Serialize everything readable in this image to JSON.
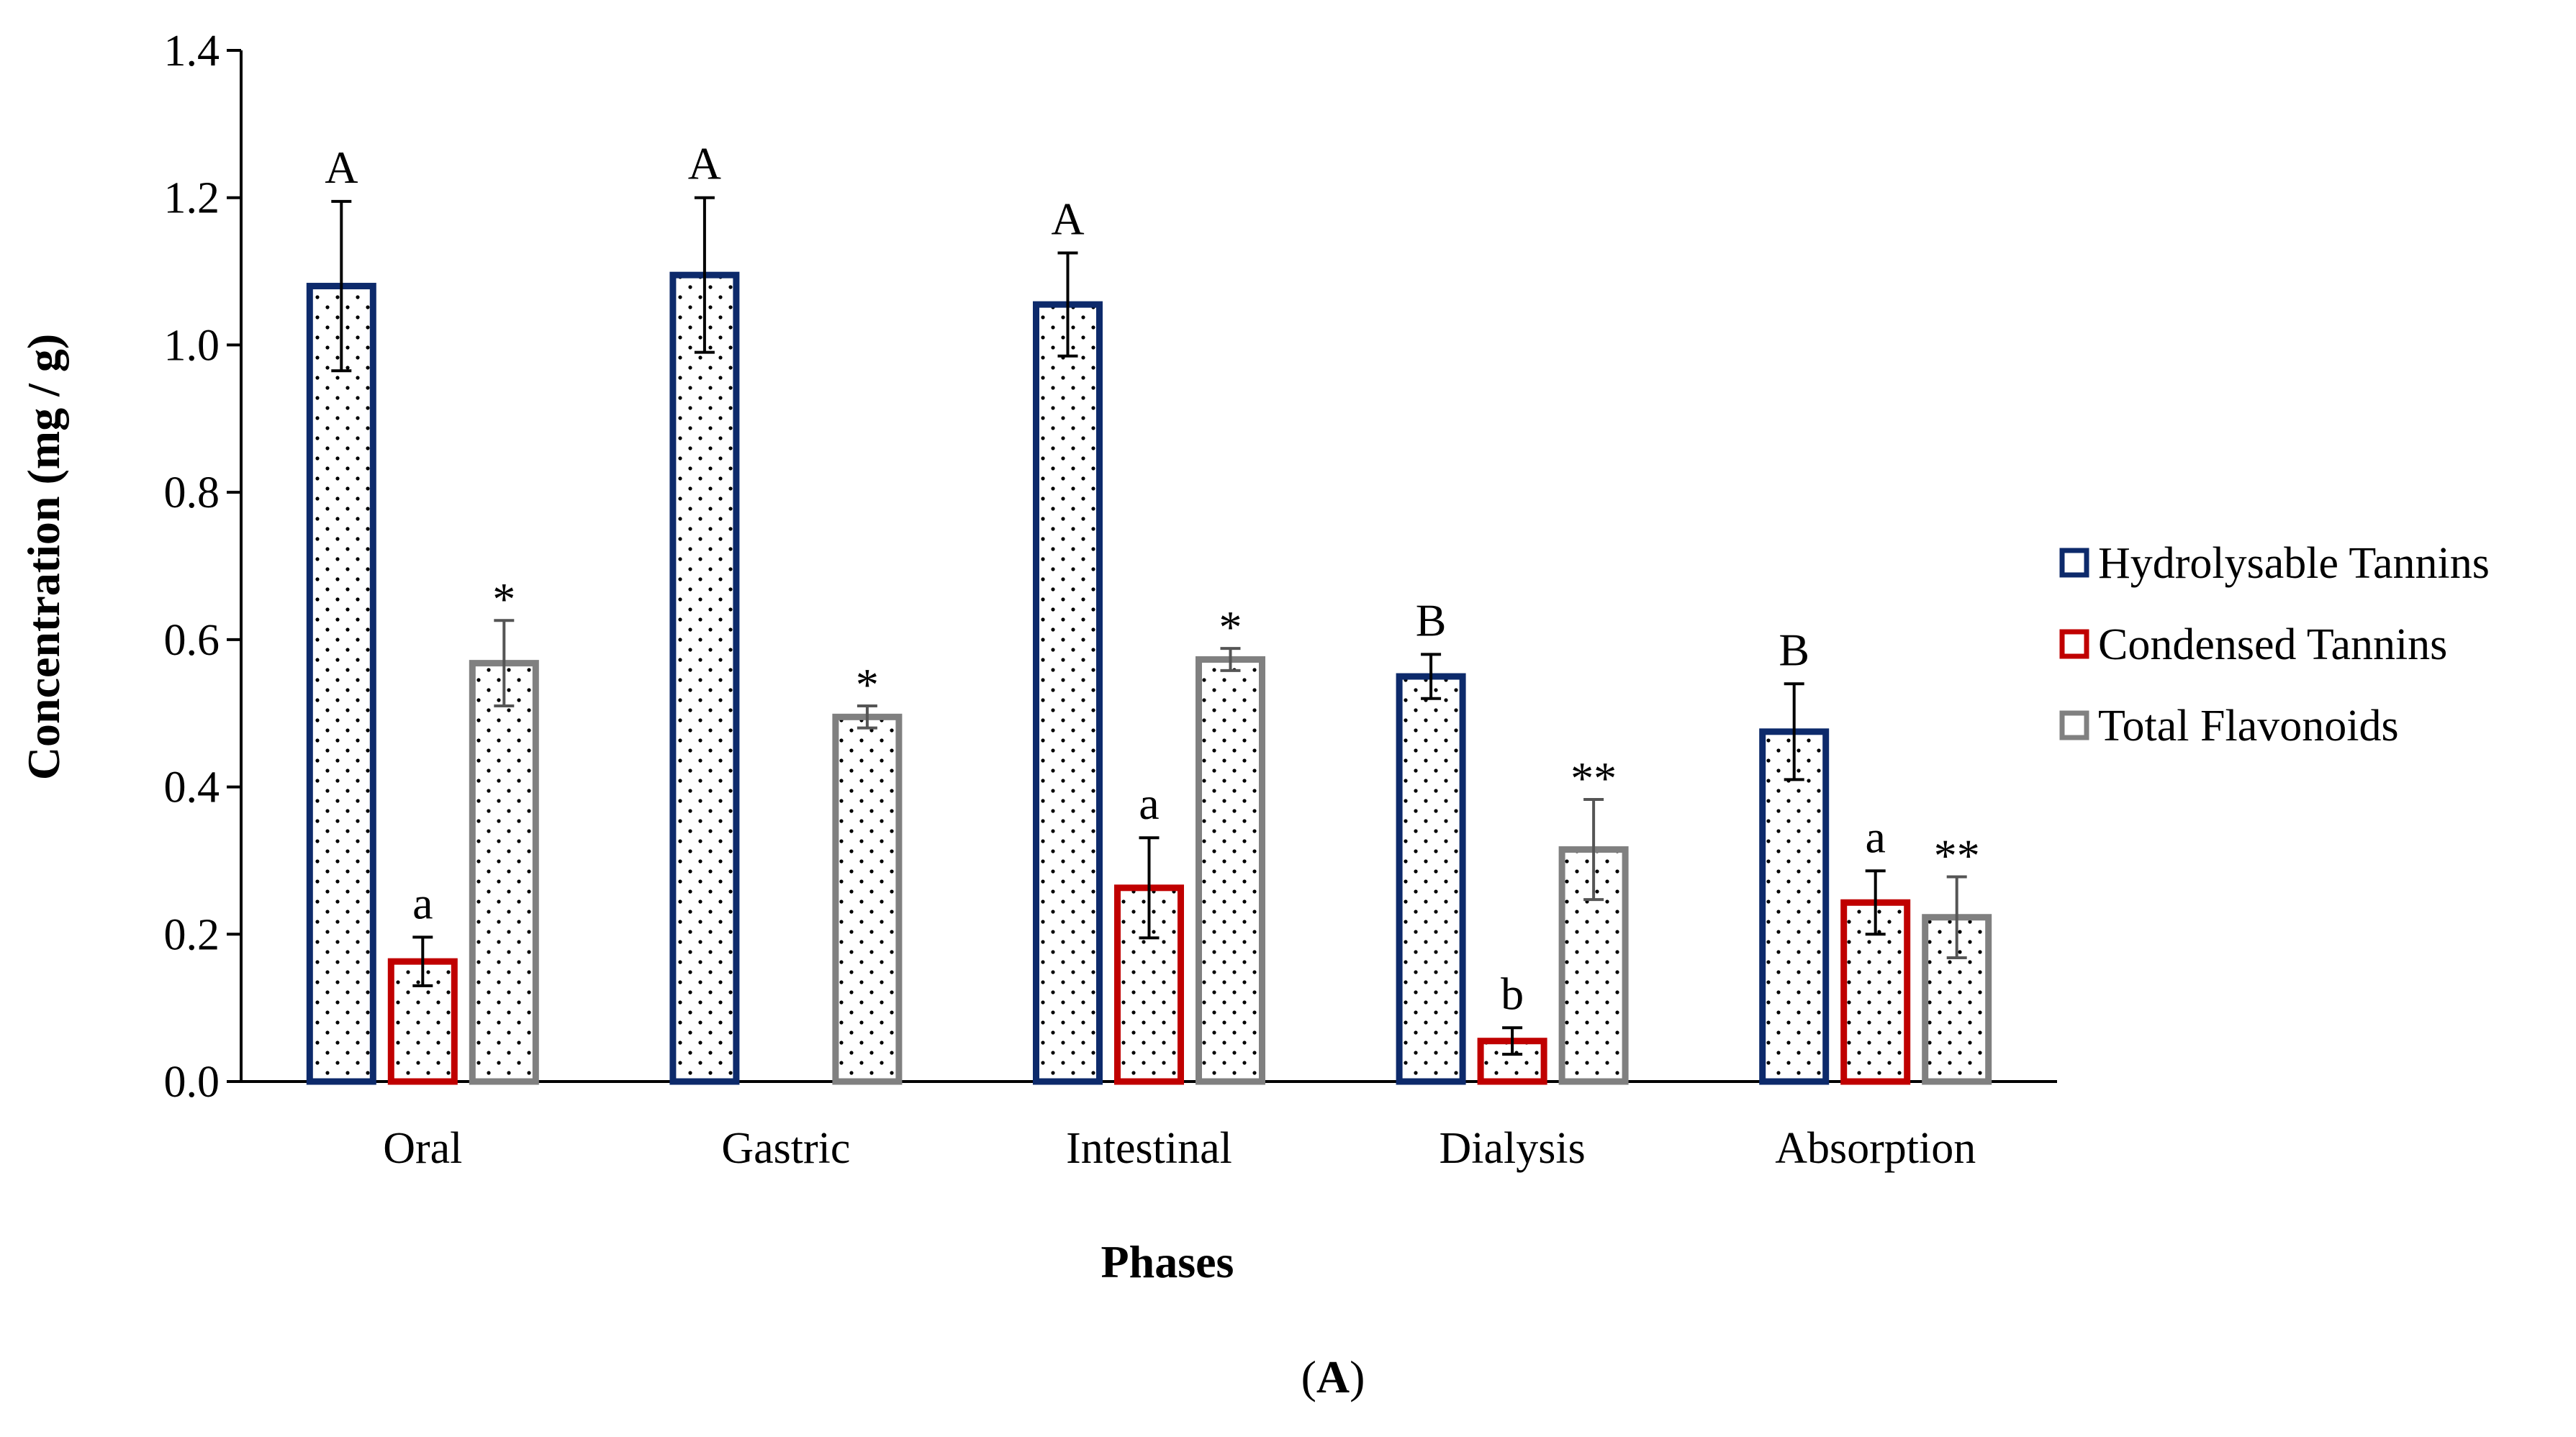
{
  "chart_data": {
    "type": "bar",
    "title": "",
    "xlabel": "Phases",
    "ylabel": "Concentration (mg / g)",
    "panel_label": [
      "(",
      "A",
      ")"
    ],
    "ylim": [
      0,
      1.4
    ],
    "yticks": [
      "0.0",
      "0.2",
      "0.4",
      "0.6",
      "0.8",
      "1.0",
      "1.2",
      "1.4"
    ],
    "categories": [
      "Oral",
      "Gastric",
      "Intestinal",
      "Dialysis",
      "Absorption"
    ],
    "legend_position": "right",
    "series": [
      {
        "name": "Hydrolysable Tannins",
        "color": "#0d2a6b",
        "values": [
          1.08,
          1.095,
          1.055,
          0.55,
          0.475
        ],
        "errors": [
          0.115,
          0.105,
          0.07,
          0.03,
          0.065
        ],
        "labels": [
          "A",
          "A",
          "A",
          "B",
          "B"
        ]
      },
      {
        "name": "Condensed Tannins",
        "color": "#c00000",
        "values": [
          0.163,
          null,
          0.263,
          0.055,
          0.243
        ],
        "errors": [
          0.033,
          null,
          0.068,
          0.018,
          0.043
        ],
        "labels": [
          "a",
          "",
          "a",
          "b",
          "a"
        ]
      },
      {
        "name": "Total Flavonoids",
        "color": "#808080",
        "values": [
          0.568,
          0.495,
          0.573,
          0.315,
          0.223
        ],
        "errors": [
          0.058,
          0.015,
          0.015,
          0.068,
          0.055
        ],
        "labels": [
          "*",
          "*",
          "*",
          "**",
          "**"
        ]
      }
    ]
  }
}
